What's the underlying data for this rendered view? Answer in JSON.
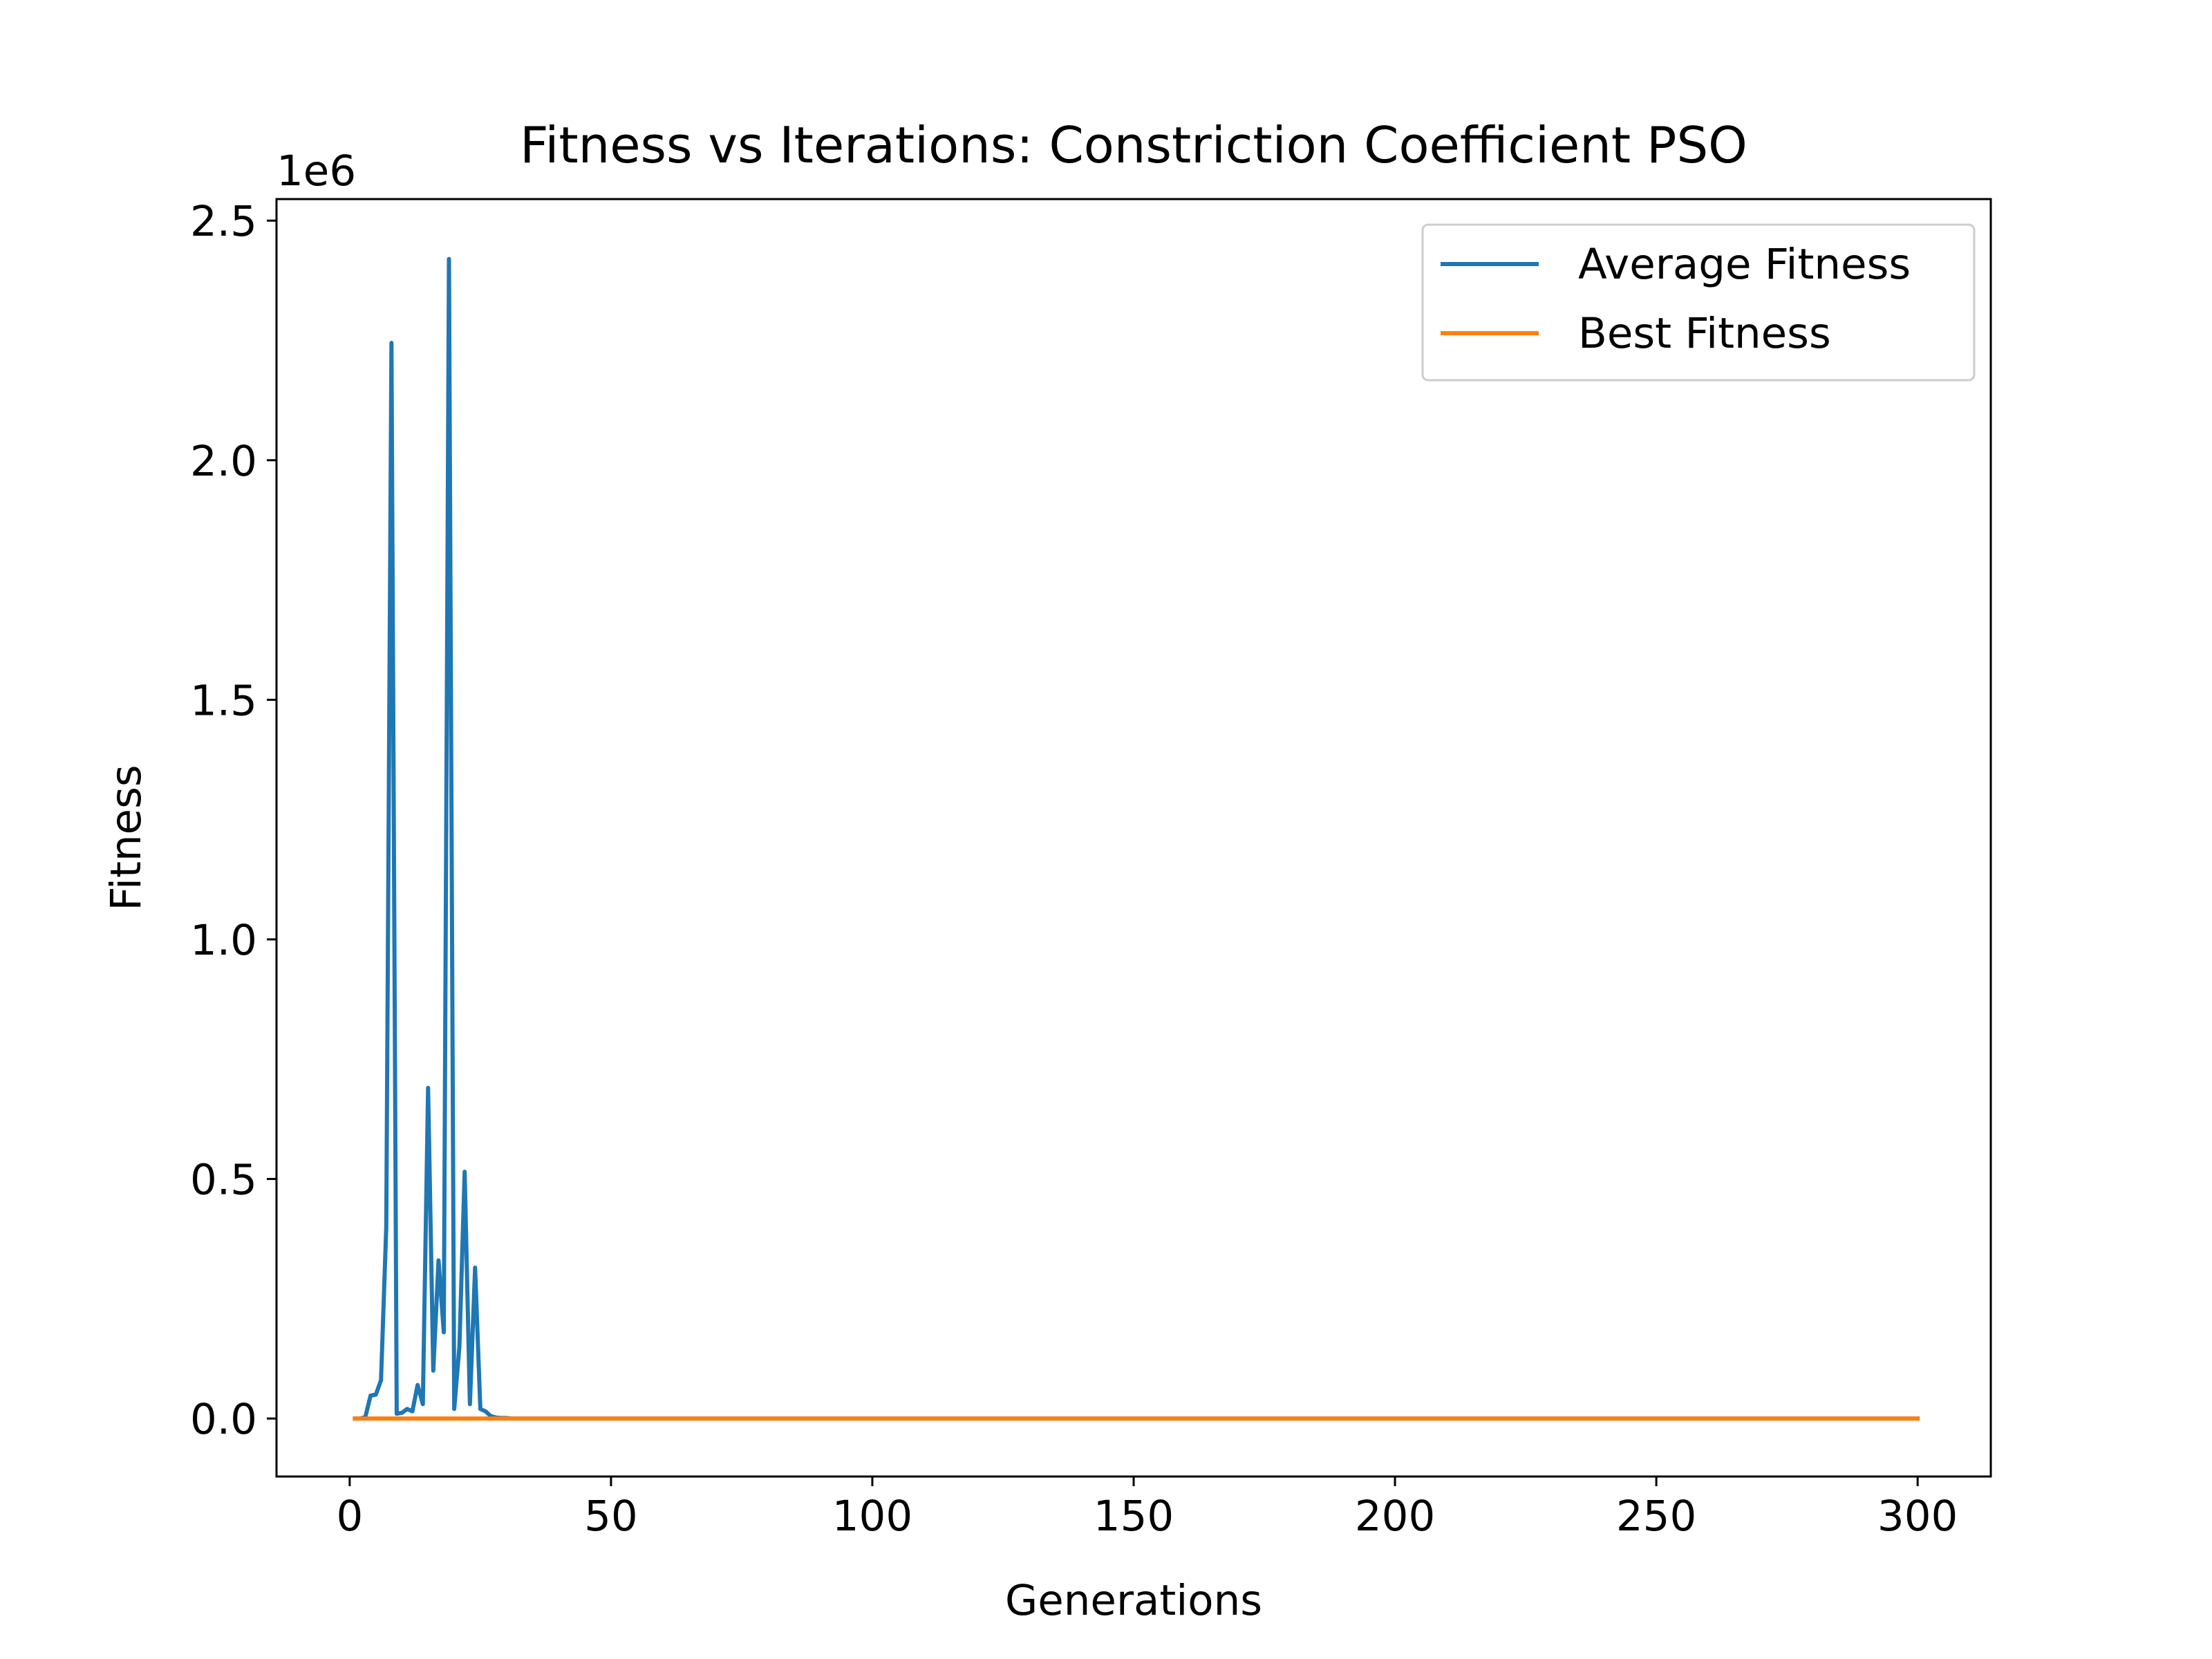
{
  "chart_data": {
    "type": "line",
    "title": "Fitness vs Iterations: Constriction Coefficient PSO",
    "xlabel": "Generations",
    "ylabel": "Fitness",
    "offset_label": "1e6",
    "xlim": [
      -14,
      314
    ],
    "ylim": [
      -0.121,
      2.545
    ],
    "y_scale_factor": 1000000,
    "xticks": [
      0,
      50,
      100,
      150,
      200,
      250,
      300
    ],
    "yticks": [
      0.0,
      0.5,
      1.0,
      1.5,
      2.0,
      2.5
    ],
    "xtick_labels": [
      "0",
      "50",
      "100",
      "150",
      "200",
      "250",
      "300"
    ],
    "ytick_labels": [
      "0.0",
      "0.5",
      "1.0",
      "1.5",
      "2.0",
      "2.5"
    ],
    "grid": false,
    "legend_position": "top-right",
    "series": [
      {
        "name": "Average Fitness",
        "color": "#1f77b4",
        "x": [
          1,
          2,
          3,
          4,
          5,
          6,
          7,
          8,
          9,
          10,
          11,
          12,
          13,
          14,
          15,
          16,
          17,
          18,
          19,
          20,
          21,
          22,
          23,
          24,
          25,
          26,
          27,
          28,
          29,
          30,
          31,
          32,
          33,
          34,
          300
        ],
        "y": [
          0.0,
          0.0,
          0.003,
          0.048,
          0.05,
          0.08,
          0.4,
          2.245,
          0.01,
          0.012,
          0.02,
          0.015,
          0.07,
          0.03,
          0.69,
          0.1,
          0.33,
          0.18,
          2.42,
          0.02,
          0.15,
          0.515,
          0.03,
          0.315,
          0.02,
          0.015,
          0.005,
          0.002,
          0.001,
          0.001,
          0.0,
          0.0,
          0.0,
          0.0,
          0.0
        ]
      },
      {
        "name": "Best Fitness",
        "color": "#ff7f0e",
        "x": [
          1,
          300
        ],
        "y": [
          0.0,
          0.0
        ]
      }
    ]
  }
}
